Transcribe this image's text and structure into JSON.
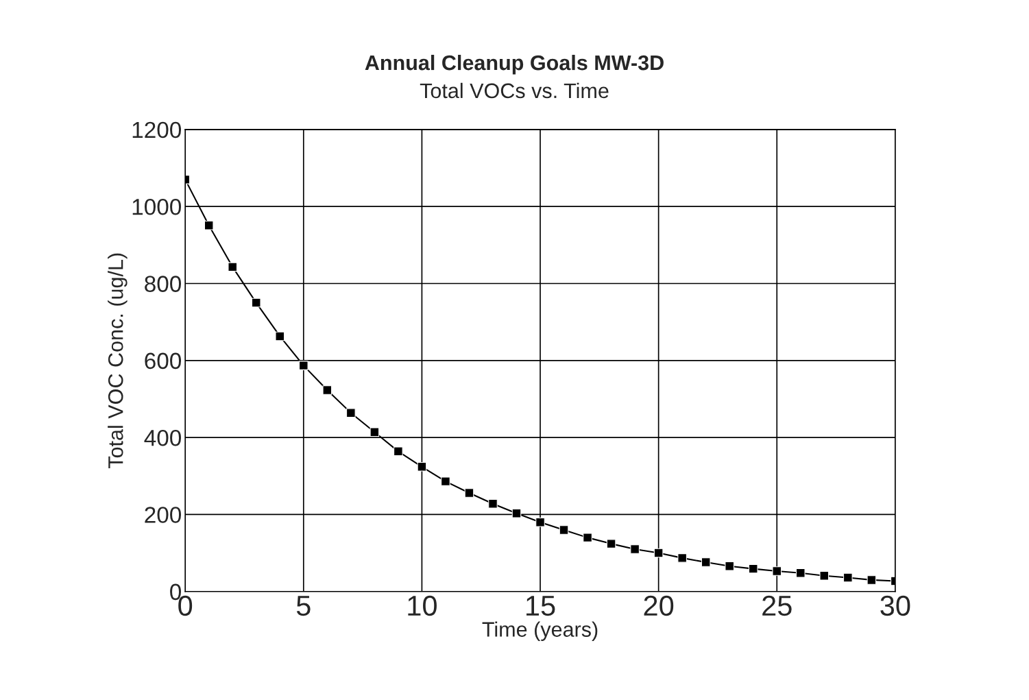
{
  "chart_data": {
    "type": "line",
    "title": "Annual Cleanup Goals MW-3D",
    "subtitle": "Total VOCs vs. Time",
    "xlabel": "Time (years)",
    "ylabel": "Total VOC Conc. (ug/L)",
    "x": [
      0,
      1,
      2,
      3,
      4,
      5,
      6,
      7,
      8,
      9,
      10,
      11,
      12,
      13,
      14,
      15,
      16,
      17,
      18,
      19,
      20,
      21,
      22,
      23,
      24,
      25,
      26,
      27,
      28,
      29,
      30
    ],
    "series": [
      {
        "color": "#000000",
        "values": [
          1070,
          951,
          843,
          750,
          663,
          587,
          523,
          464,
          414,
          364,
          324,
          286,
          256,
          228,
          203,
          180,
          160,
          140,
          124,
          110,
          100,
          87,
          76,
          66,
          59,
          53,
          48,
          41,
          36,
          30,
          27
        ]
      }
    ],
    "xlim": [
      0,
      30
    ],
    "xticks": [
      0,
      5,
      10,
      15,
      20,
      25,
      30
    ],
    "ylim": [
      0,
      1200
    ],
    "yticks": [
      0,
      200,
      400,
      600,
      800,
      1000,
      1200
    ],
    "grid": true,
    "marker": "square",
    "line_style": "solid"
  }
}
